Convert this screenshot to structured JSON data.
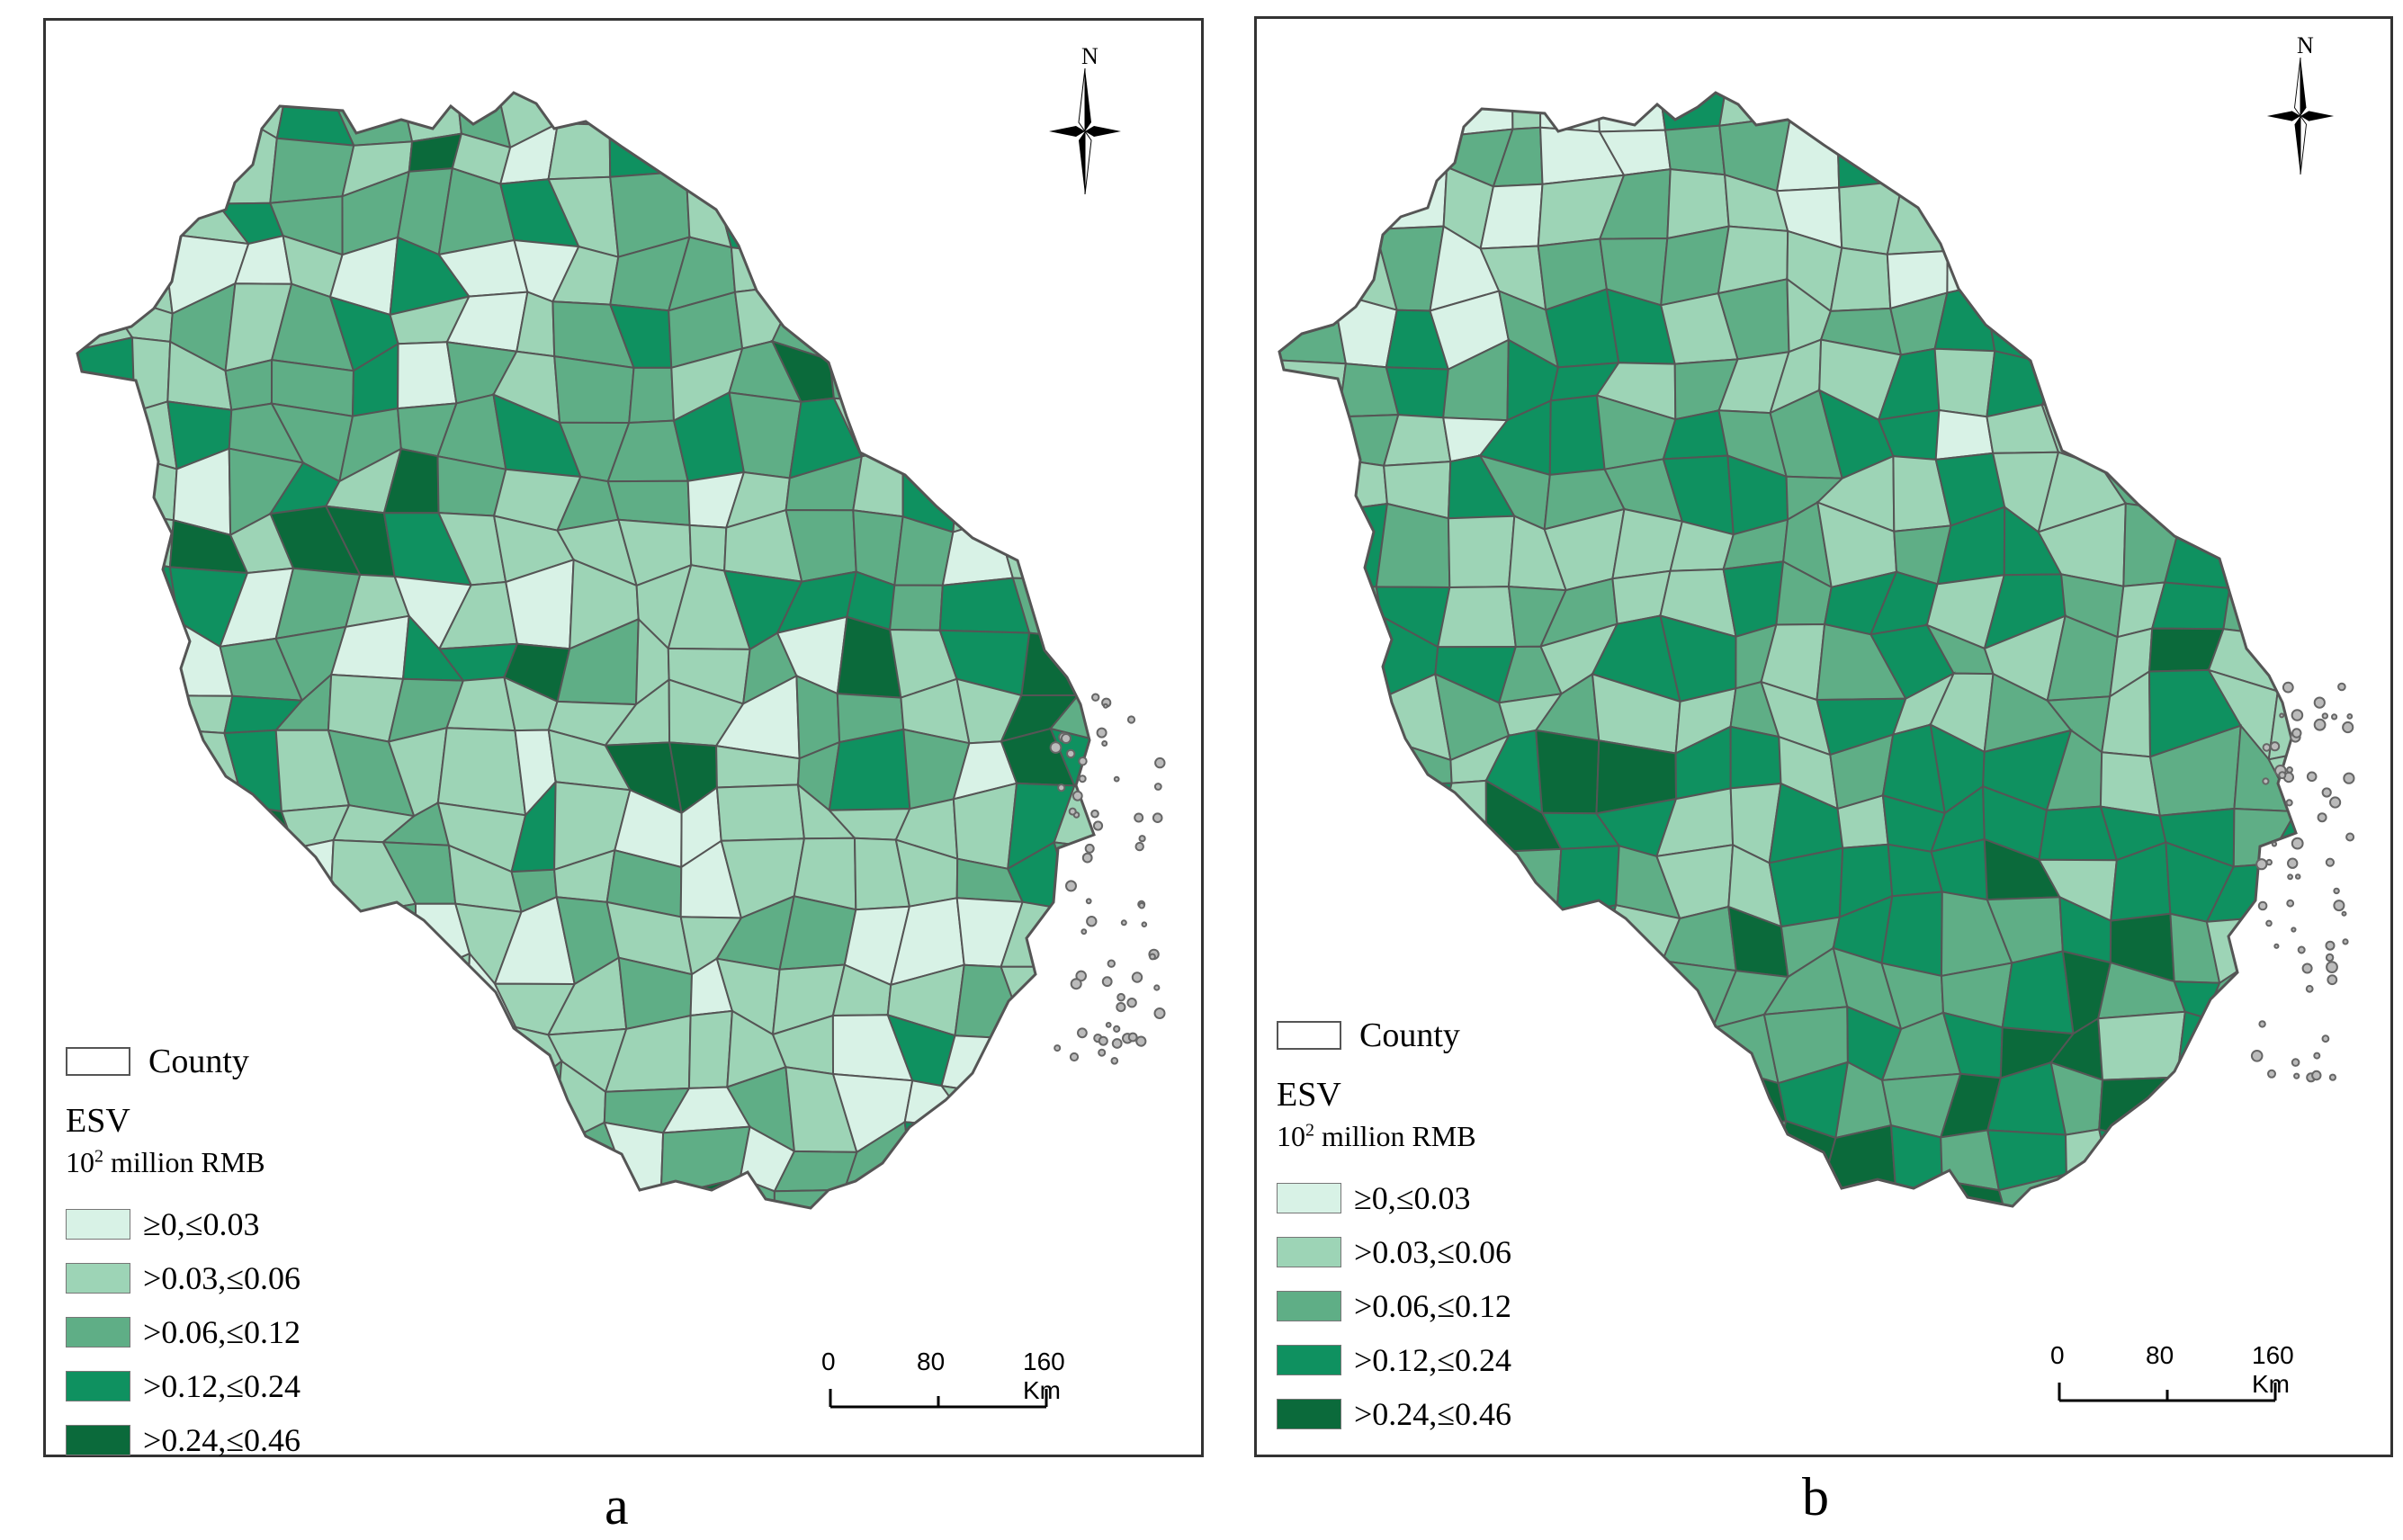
{
  "panels": [
    {
      "id": "a",
      "caption": "a",
      "legend": {
        "county_label": "County",
        "esv_title": "ESV",
        "unit_base": "10",
        "unit_exp": "2",
        "unit_rest": " million RMB",
        "classes": [
          {
            "label": "≥0,≤0.03",
            "color": "#d8f2e6"
          },
          {
            "label": ">0.03,≤0.06",
            "color": "#9dd4b6"
          },
          {
            "label": ">0.06,≤0.12",
            "color": "#5fae86"
          },
          {
            "label": ">0.12,≤0.24",
            "color": "#0f9160"
          },
          {
            "label": ">0.24,≤0.46",
            "color": "#0b6a3b"
          }
        ]
      },
      "north_label": "N",
      "scale": {
        "ticks": [
          "0",
          "80",
          "160 Km"
        ]
      }
    },
    {
      "id": "b",
      "caption": "b",
      "legend": {
        "county_label": "County",
        "esv_title": "ESV",
        "unit_base": "10",
        "unit_exp": "2",
        "unit_rest": " million RMB",
        "classes": [
          {
            "label": "≥0,≤0.03",
            "color": "#d8f2e6"
          },
          {
            "label": ">0.03,≤0.06",
            "color": "#9dd4b6"
          },
          {
            "label": ">0.06,≤0.12",
            "color": "#5fae86"
          },
          {
            "label": ">0.12,≤0.24",
            "color": "#0f9160"
          },
          {
            "label": ">0.24,≤0.46",
            "color": "#0b6a3b"
          }
        ]
      },
      "north_label": "N",
      "scale": {
        "ticks": [
          "0",
          "80",
          "160 Km"
        ]
      }
    }
  ],
  "colors": {
    "boundary": "#555555",
    "class_1": "#d8f2e6",
    "class_2": "#9dd4b6",
    "class_3": "#5fae86",
    "class_4": "#0f9160",
    "class_5": "#0b6a3b"
  }
}
